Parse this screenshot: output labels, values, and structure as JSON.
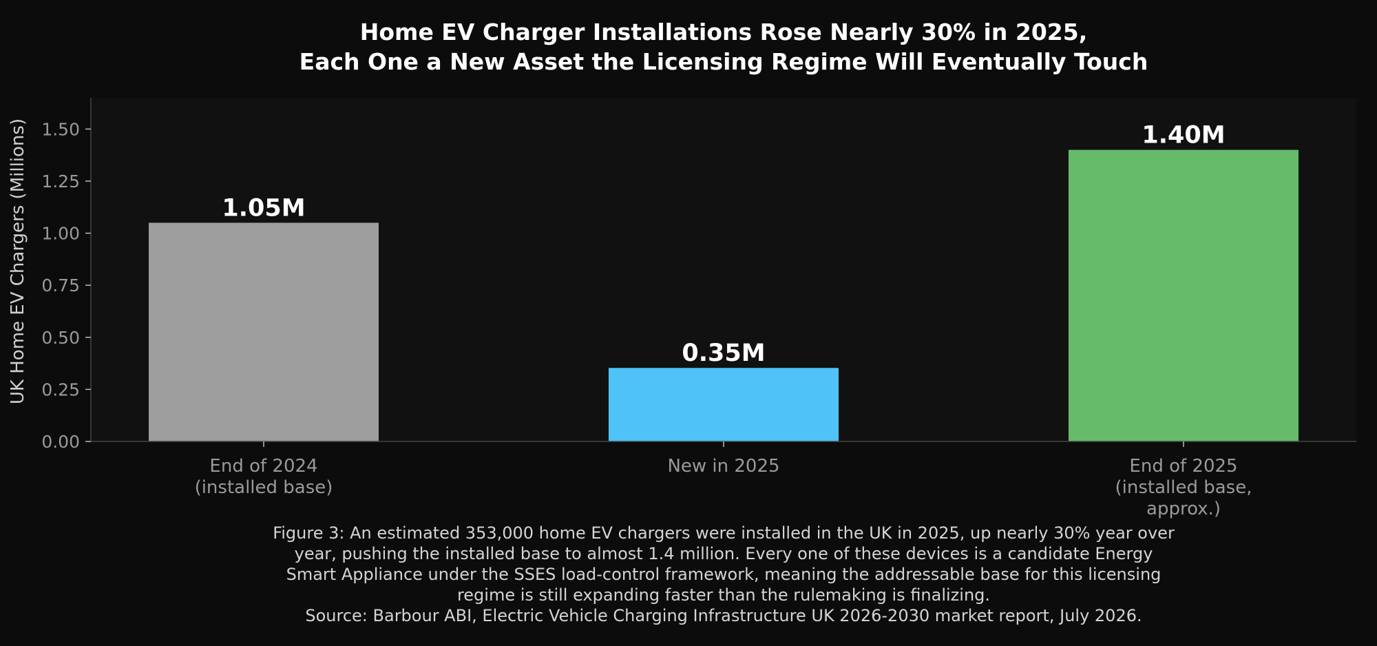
{
  "chart_data": {
    "type": "bar",
    "title": [
      "Home EV Charger Installations Rose Nearly 30% in 2025,",
      "Each One a New Asset the Licensing Regime Will Eventually Touch"
    ],
    "ylabel": "UK Home EV Chargers (Millions)",
    "xlabel": "",
    "ylim": [
      0,
      1.65
    ],
    "yticks": [
      "0.00",
      "0.25",
      "0.50",
      "0.75",
      "1.00",
      "1.25",
      "1.50"
    ],
    "ytick_values": [
      0,
      0.25,
      0.5,
      0.75,
      1.0,
      1.25,
      1.5
    ],
    "grid": false,
    "categories": [
      [
        "End of 2024",
        "(installed base)"
      ],
      [
        "New in 2025"
      ],
      [
        "End of 2025",
        "(installed base,",
        "approx.)"
      ]
    ],
    "values": [
      1.05,
      0.353,
      1.4
    ],
    "data_labels": [
      "1.05M",
      "0.35M",
      "1.40M"
    ],
    "colors": [
      "#9e9e9e",
      "#4fc3f7",
      "#66bb6a"
    ],
    "caption": [
      "Figure 3: An estimated 353,000 home EV chargers were installed in the UK in 2025, up nearly 30% year over",
      "year, pushing the installed base to almost 1.4 million. Every one of these devices is a candidate Energy",
      "Smart Appliance under the SSES load-control framework, meaning the addressable base for this licensing",
      "regime is still expanding faster than the rulemaking is finalizing.",
      "Source: Barbour ABI, Electric Vehicle Charging Infrastructure UK 2026-2030 market report, July 2026."
    ]
  },
  "colors": {
    "page_background": "#0c0c0c",
    "plot_background": "#111111",
    "axis": "#444444"
  }
}
